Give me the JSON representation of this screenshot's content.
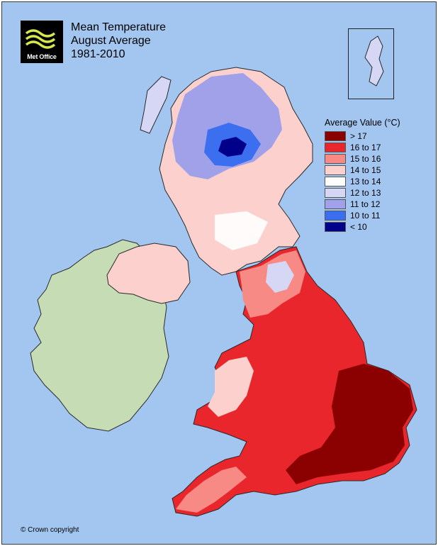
{
  "title": {
    "line1": "Mean Temperature",
    "line2": "August Average",
    "line3": "1981-2010"
  },
  "logo": {
    "text": "Met Office",
    "icon": "met-office-wave-logo"
  },
  "legend": {
    "title": "Average Value (°C)",
    "items": [
      {
        "label": "> 17",
        "color": "#8b0000"
      },
      {
        "label": "16 to 17",
        "color": "#e8262b"
      },
      {
        "label": "15 to 16",
        "color": "#f78a85"
      },
      {
        "label": "14 to 15",
        "color": "#fbd0cd"
      },
      {
        "label": "13 to 14",
        "color": "#ffffff"
      },
      {
        "label": "12 to 13",
        "color": "#d6d6f5"
      },
      {
        "label": "11 to 12",
        "color": "#a1a1ea"
      },
      {
        "label": "10 to 11",
        "color": "#3b6ff0"
      },
      {
        "label": "< 10",
        "color": "#00008b"
      }
    ]
  },
  "copyright": "© Crown copyright",
  "colors": {
    "sea": "#a3c6f0",
    "ireland": "#c6dcb4"
  }
}
